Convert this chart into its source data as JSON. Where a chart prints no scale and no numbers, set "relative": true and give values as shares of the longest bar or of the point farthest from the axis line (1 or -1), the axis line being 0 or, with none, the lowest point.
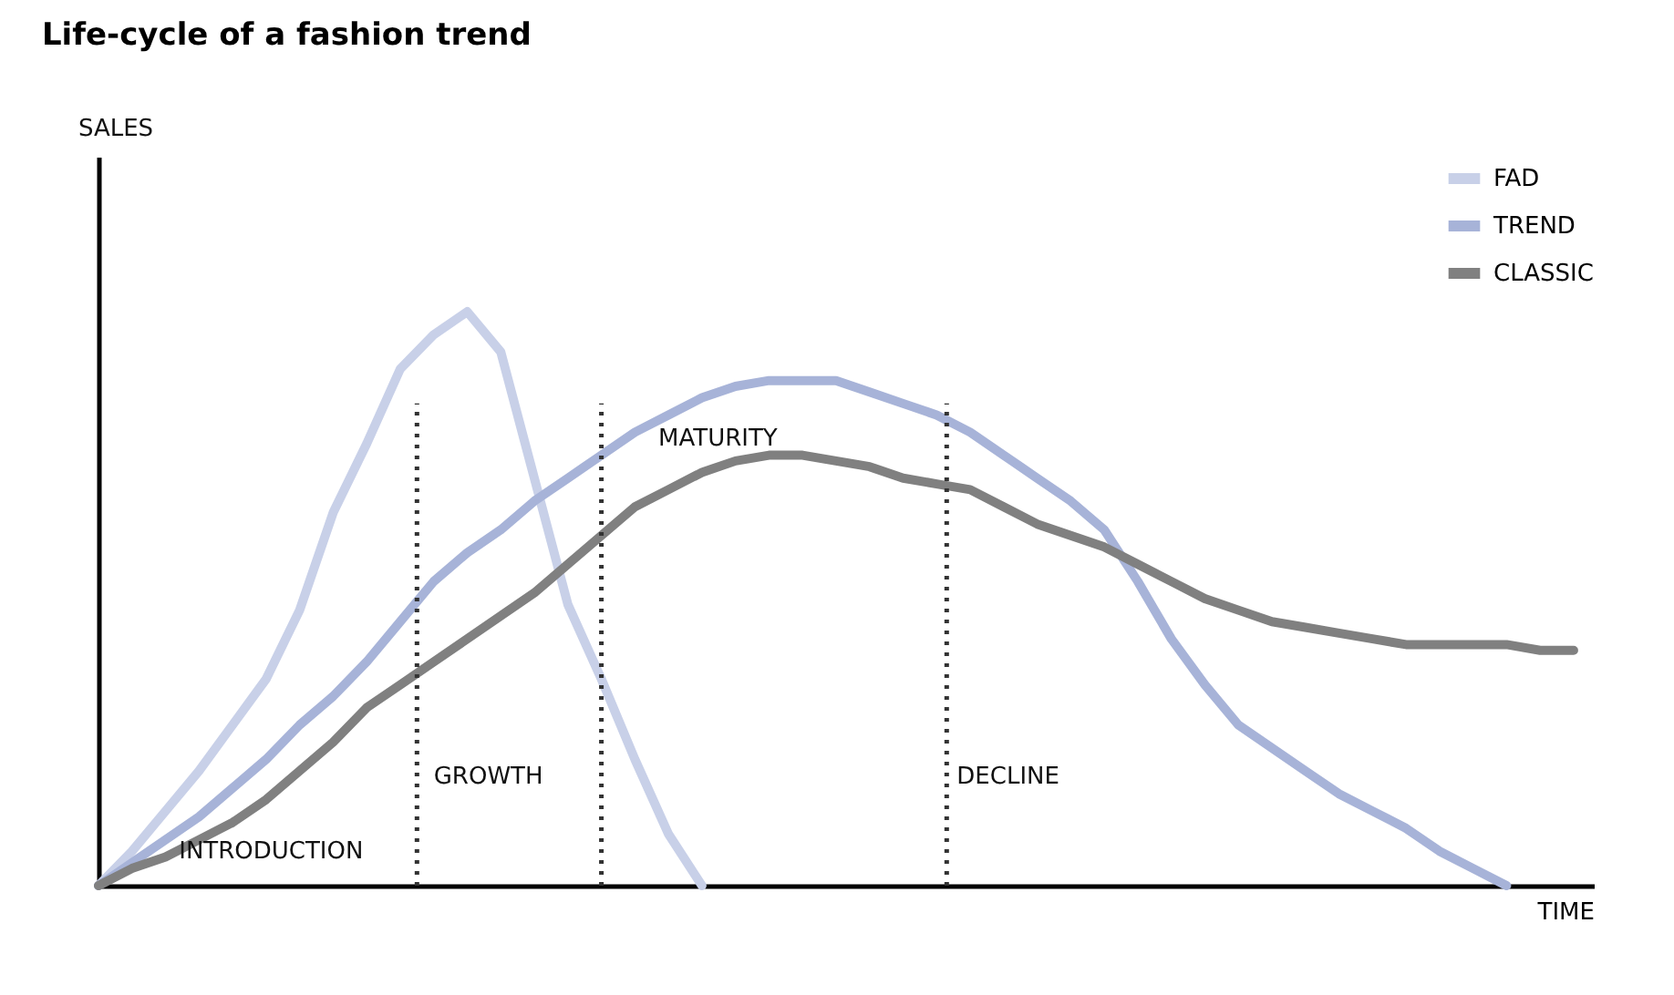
{
  "chart_data": {
    "type": "line",
    "title": "Life-cycle of a fashion trend",
    "xlabel": "TIME",
    "relative": true,
    "categories": [
      null,
      null,
      null,
      null,
      null,
      null,
      null,
      null,
      null,
      null,
      null,
      null,
      null,
      null,
      null,
      null,
      null,
      null,
      null,
      null,
      null,
      null,
      null,
      null,
      null,
      null,
      null,
      null,
      null,
      null,
      null,
      null,
      null,
      null,
      null,
      null,
      null,
      null,
      null,
      null,
      null,
      null,
      null,
      null,
      null
    ],
    "series": [
      {
        "name": "FAD",
        "color": "#c8d0e8",
        "values": [
          0,
          0.06,
          0.13,
          0.2,
          0.28,
          0.36,
          0.48,
          0.65,
          0.77,
          0.9,
          0.96,
          1,
          0.93,
          0.71,
          0.49,
          0.36,
          0.22,
          0.09,
          0,
          null,
          null,
          null,
          null,
          null,
          null,
          null,
          null,
          null,
          null,
          null,
          null,
          null,
          null,
          null,
          null,
          null,
          null,
          null,
          null,
          null,
          null,
          null,
          null,
          null,
          null
        ]
      },
      {
        "name": "TREND",
        "color": "#a7b3d8",
        "values": [
          0,
          0.04,
          0.08,
          0.12,
          0.17,
          0.22,
          0.28,
          0.33,
          0.39,
          0.46,
          0.53,
          0.58,
          0.62,
          0.67,
          0.71,
          0.75,
          0.79,
          0.82,
          0.85,
          0.87,
          0.88,
          0.88,
          0.88,
          0.86,
          0.84,
          0.82,
          0.79,
          0.75,
          0.71,
          0.67,
          0.62,
          0.53,
          0.43,
          0.35,
          0.28,
          0.24,
          0.2,
          0.16,
          0.13,
          0.1,
          0.06,
          0.03,
          0,
          null,
          null
        ]
      },
      {
        "name": "CLASSIC",
        "color": "#808080",
        "values": [
          0,
          0.03,
          0.05,
          0.08,
          0.11,
          0.15,
          0.2,
          0.25,
          0.31,
          0.35,
          0.39,
          0.43,
          0.47,
          0.51,
          0.56,
          0.61,
          0.66,
          0.69,
          0.72,
          0.74,
          0.75,
          0.75,
          0.74,
          0.73,
          0.71,
          0.7,
          0.69,
          0.66,
          0.63,
          0.61,
          0.59,
          0.56,
          0.53,
          0.5,
          0.48,
          0.46,
          0.45,
          0.44,
          0.43,
          0.42,
          0.42,
          0.42,
          0.42,
          0.41,
          0.41
        ]
      }
    ],
    "annotations": [
      "SALES",
      "INTRODUCTION",
      "GROWTH",
      "MATURITY",
      "DECLINE"
    ],
    "legend": "top right",
    "line_style": "solid",
    "marker": "none",
    "grid": false
  }
}
